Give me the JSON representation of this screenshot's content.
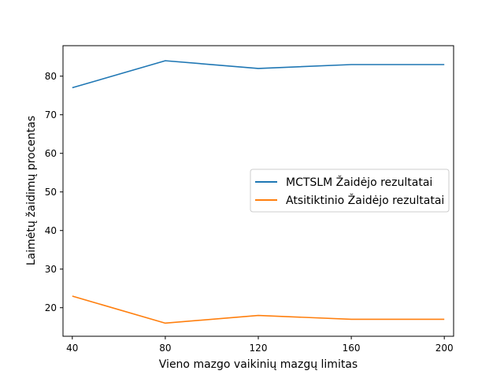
{
  "chart_data": {
    "type": "line",
    "x": [
      40,
      80,
      120,
      160,
      200
    ],
    "xticks": [
      40,
      80,
      120,
      160,
      200
    ],
    "yticks": [
      20,
      30,
      40,
      50,
      60,
      70,
      80
    ],
    "xlim": [
      36,
      204
    ],
    "ylim": [
      12.6,
      87.9
    ],
    "xlabel": "Vieno mazgo vaikinių mazgų limitas",
    "ylabel": "Laimėtų žaidimų procentas",
    "grid": false,
    "legend_position": "center-right",
    "series": [
      {
        "name": "MCTSLM Žaidėjo rezultatai",
        "color": "#1f77b4",
        "values": [
          77,
          84,
          82,
          83,
          83
        ]
      },
      {
        "name": "Atsitiktinio Žaidėjo rezultatai",
        "color": "#ff7f0e",
        "values": [
          23,
          16,
          18,
          17,
          17
        ]
      }
    ]
  }
}
